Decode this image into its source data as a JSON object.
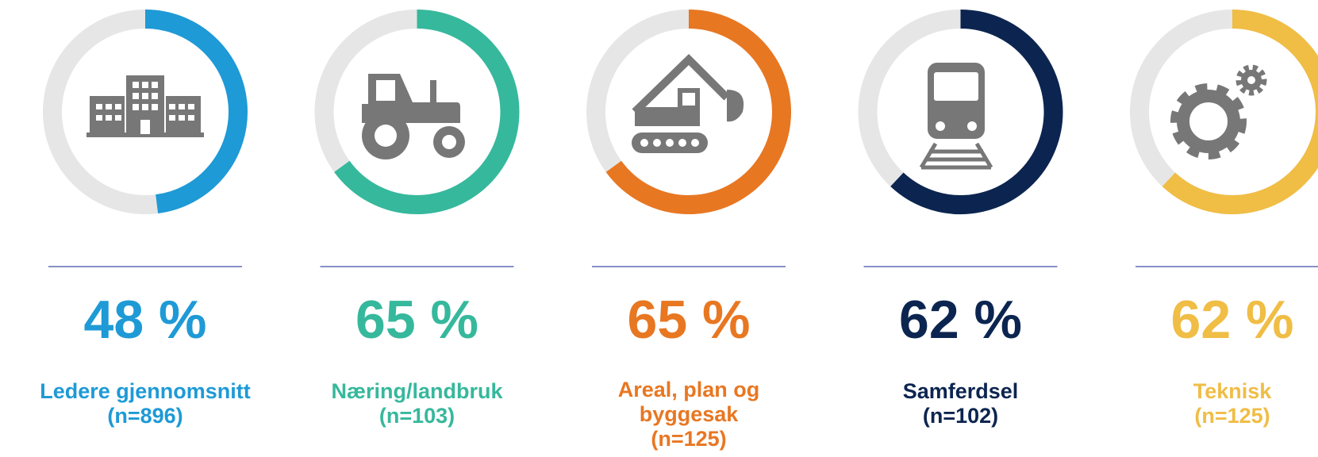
{
  "chart_data": [
    {
      "type": "donut",
      "values": [
        48
      ],
      "value_labels": [
        "48 %"
      ],
      "title": "Ledere gjennomsnitt",
      "subtitle": "(n=896)",
      "color": "#1e9ad6",
      "ylim": [
        0,
        100
      ]
    },
    {
      "type": "donut",
      "values": [
        65
      ],
      "value_labels": [
        "65 %"
      ],
      "title": "Næring/landbruk",
      "subtitle": "(n=103)",
      "color": "#36b89c",
      "ylim": [
        0,
        100
      ]
    },
    {
      "type": "donut",
      "values": [
        65
      ],
      "value_labels": [
        "65 %"
      ],
      "title": "Areal, plan og byggesak",
      "subtitle": "(n=125)",
      "color": "#e87722",
      "ylim": [
        0,
        100
      ]
    },
    {
      "type": "donut",
      "values": [
        62
      ],
      "value_labels": [
        "62 %"
      ],
      "title": "Samferdsel",
      "subtitle": "(n=102)",
      "color": "#0c2550",
      "ylim": [
        0,
        100
      ]
    },
    {
      "type": "donut",
      "values": [
        62
      ],
      "value_labels": [
        "62 %"
      ],
      "title": "Teknisk",
      "subtitle": "(n=125)",
      "color": "#f0bd45",
      "ylim": [
        0,
        100
      ]
    }
  ]
}
